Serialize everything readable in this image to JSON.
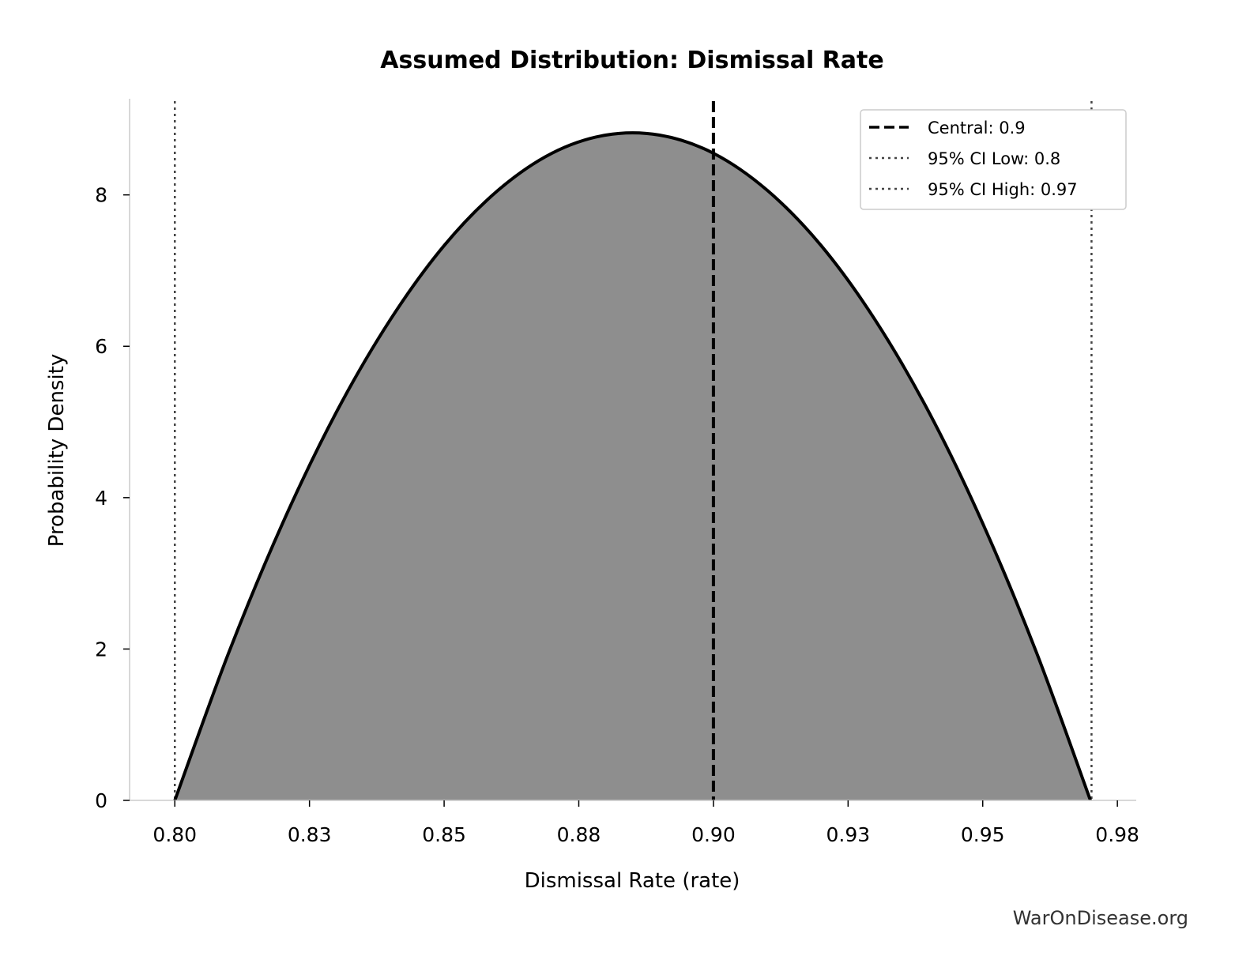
{
  "chart_data": {
    "type": "area",
    "title": "Assumed Distribution: Dismissal Rate",
    "xlabel": "Dismissal Rate (rate)",
    "ylabel": "Probability Density",
    "xlim": [
      0.7916,
      0.9785
    ],
    "ylim": [
      0,
      9.27
    ],
    "xticks": [
      0.8,
      0.825,
      0.85,
      0.875,
      0.9,
      0.925,
      0.95,
      0.975
    ],
    "xtick_labels": [
      "0.80",
      "0.83",
      "0.85",
      "0.88",
      "0.90",
      "0.93",
      "0.95",
      "0.98"
    ],
    "yticks": [
      0,
      2,
      4,
      6,
      8
    ],
    "ytick_labels": [
      "0",
      "2",
      "4",
      "6",
      "8"
    ],
    "grid": false,
    "legend_position": "top-right",
    "fill_color": "#8e8e8e",
    "line_color": "#000000",
    "series": [
      {
        "x": [
          0.8,
          0.81,
          0.82,
          0.83,
          0.84,
          0.85,
          0.86,
          0.87,
          0.88,
          0.89,
          0.9,
          0.91,
          0.92,
          0.93,
          0.94,
          0.95,
          0.96,
          0.97
        ],
        "y": [
          0,
          1.95,
          3.66,
          5.13,
          6.35,
          7.33,
          8.06,
          8.55,
          8.79,
          8.79,
          8.55,
          8.06,
          7.33,
          6.35,
          5.13,
          3.66,
          1.95,
          0
        ]
      }
    ],
    "reference_lines": [
      {
        "name": "Central: 0.9",
        "x": 0.9,
        "style": "dashed",
        "color": "#000000"
      },
      {
        "name": "95% CI Low: 0.8",
        "x": 0.8,
        "style": "dotted",
        "color": "#444444"
      },
      {
        "name": "95% CI High: 0.97",
        "x": 0.9702,
        "style": "dotted",
        "color": "#444444"
      }
    ]
  },
  "watermark": "WarOnDisease.org"
}
